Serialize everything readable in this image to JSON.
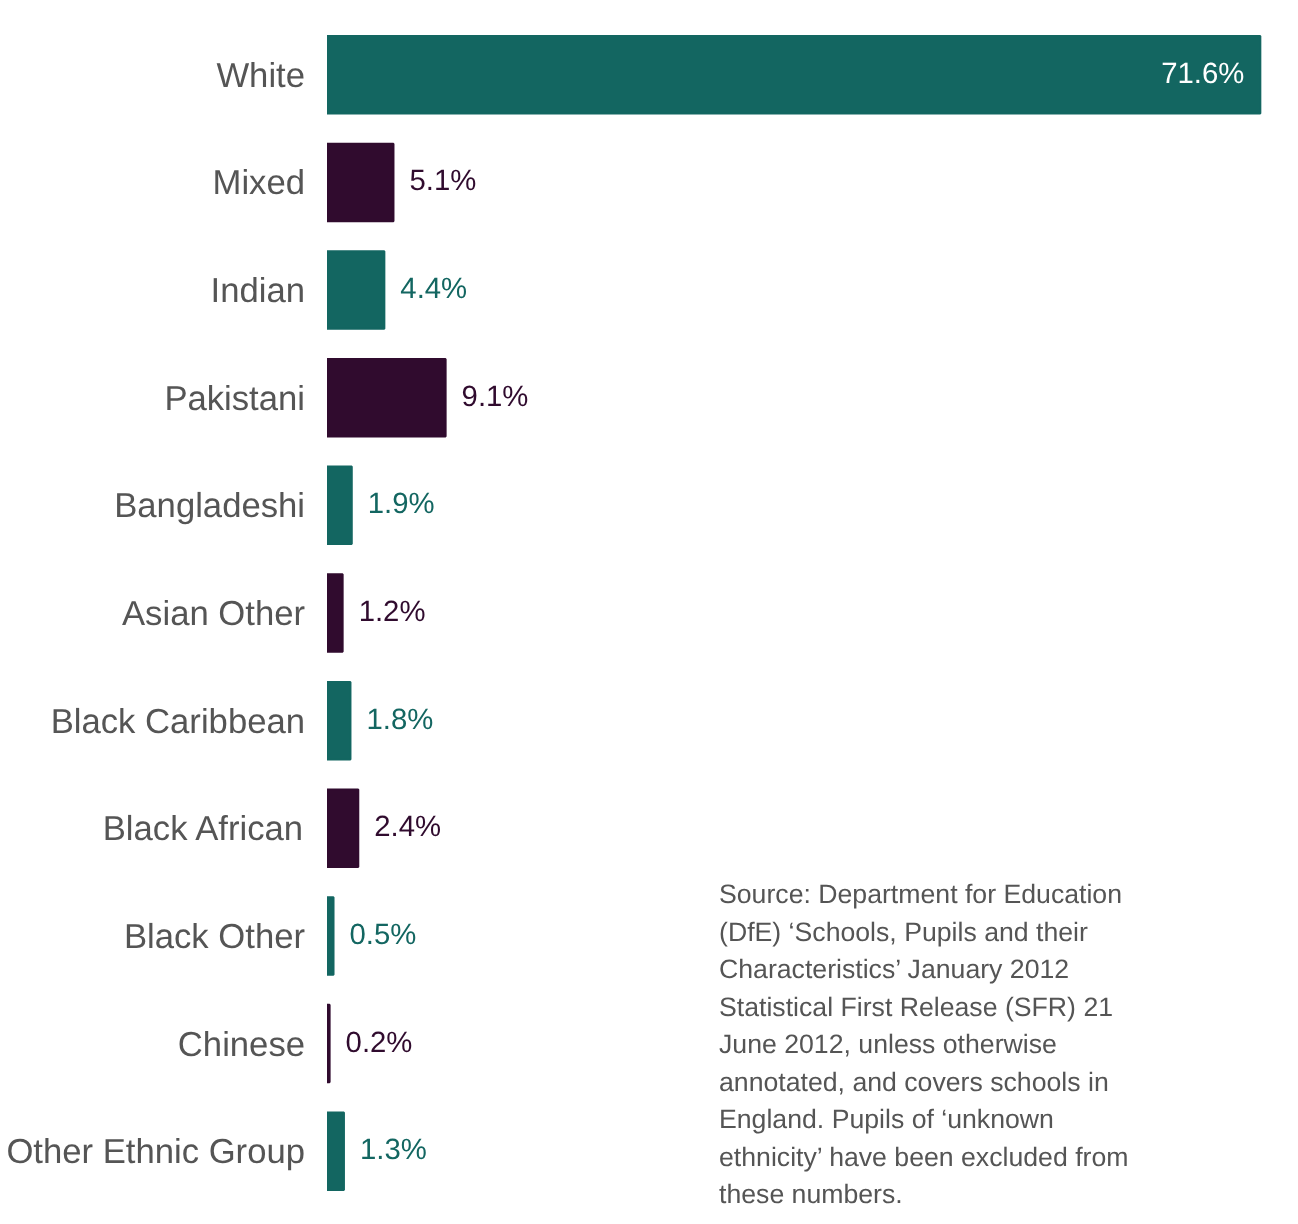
{
  "chart_data": {
    "type": "bar",
    "orientation": "horizontal",
    "categories": [
      "White",
      "Mixed",
      "Indian",
      "Pakistani",
      "Bangladeshi",
      "Asian Other",
      "Black Caribbean",
      "Black African",
      "Black Other",
      "Chinese",
      "Other Ethnic Group"
    ],
    "values": [
      71.6,
      5.1,
      4.4,
      9.1,
      1.9,
      1.2,
      1.8,
      2.4,
      0.5,
      0.2,
      1.3
    ],
    "colors": [
      "#136661",
      "#300b2e",
      "#136661",
      "#300b2e",
      "#136661",
      "#300b2e",
      "#136661",
      "#300b2e",
      "#136661",
      "#300b2e",
      "#136661"
    ],
    "value_labels": [
      "71.6%",
      "5.1%",
      "4.4%",
      "9.1%",
      "1.9%",
      "1.2%",
      "1.8%",
      "2.4%",
      "0.5%",
      "0.2%",
      "1.3%"
    ],
    "annotations": [
      "Source: Department for Education (DfE) ‘Schools, Pupils and their Characteristics’ January 2012 Statistical First Release (SFR) 21 June 2012, unless otherwise annotated, and covers schools in England. Pupils of ‘unknown ethnicity’ have been excluded from these numbers."
    ]
  }
}
